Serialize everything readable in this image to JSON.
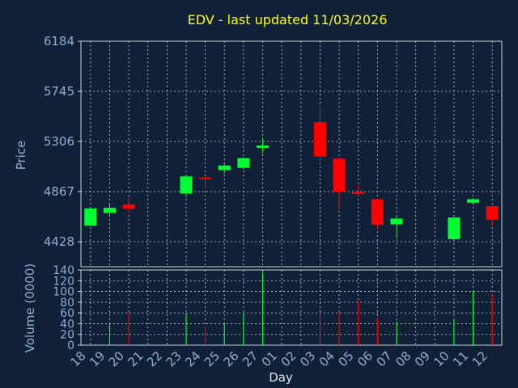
{
  "chart_data": [
    {
      "type": "candlestick",
      "title": "EDV - last updated 11/03/2026",
      "ylabel": "Price",
      "ylim": [
        4208.5,
        6184
      ],
      "y_ticks": [
        4428,
        4867,
        5306,
        5745,
        6184
      ],
      "y_tick_labels": [
        "4428",
        "4867",
        "5306",
        "5745",
        "6184"
      ],
      "grid": true,
      "up_color": "#00ff33",
      "down_color": "#ff0000",
      "candles": [
        {
          "x": 0,
          "open": 4570,
          "close": 4720,
          "high": 4720,
          "low": 4570
        },
        {
          "x": 1,
          "open": 4680,
          "close": 4725,
          "high": 4755,
          "low": 4645
        },
        {
          "x": 2,
          "open": 4755,
          "close": 4715,
          "high": 4820,
          "low": 4680
        },
        {
          "x": 5,
          "open": 4850,
          "close": 5000,
          "high": 5010,
          "low": 4820
        },
        {
          "x": 6,
          "open": 4990,
          "close": 4975,
          "high": 5000,
          "low": 4895
        },
        {
          "x": 7,
          "open": 5055,
          "close": 5095,
          "high": 5110,
          "low": 5025
        },
        {
          "x": 8,
          "open": 5075,
          "close": 5160,
          "high": 5165,
          "low": 5060
        },
        {
          "x": 9,
          "open": 5250,
          "close": 5270,
          "high": 5340,
          "low": 5205
        },
        {
          "x": 12,
          "open": 5475,
          "close": 5175,
          "high": 5625,
          "low": 5100
        },
        {
          "x": 13,
          "open": 5155,
          "close": 4865,
          "high": 5165,
          "low": 4725
        },
        {
          "x": 14,
          "open": 4860,
          "close": 4845,
          "high": 4925,
          "low": 4830
        },
        {
          "x": 15,
          "open": 4800,
          "close": 4575,
          "high": 4800,
          "low": 4545
        },
        {
          "x": 16,
          "open": 4580,
          "close": 4630,
          "high": 4650,
          "low": 4460
        },
        {
          "x": 19,
          "open": 4450,
          "close": 4640,
          "high": 4640,
          "low": 4450
        },
        {
          "x": 20,
          "open": 4770,
          "close": 4800,
          "high": 4810,
          "low": 4760
        },
        {
          "x": 21,
          "open": 4740,
          "close": 4620,
          "high": 4740,
          "low": 4565
        }
      ]
    },
    {
      "type": "bar",
      "ylabel": "Volume (0000)",
      "xlabel": "Day",
      "ylim": [
        0,
        140
      ],
      "y_ticks": [
        0,
        20,
        40,
        60,
        80,
        100,
        120,
        140
      ],
      "y_tick_labels": [
        "0",
        "20",
        "40",
        "60",
        "80",
        "100",
        "120",
        "140"
      ],
      "categories": [
        "18",
        "19",
        "20",
        "21",
        "22",
        "23",
        "24",
        "25",
        "26",
        "27",
        "01",
        "02",
        "03",
        "04",
        "05",
        "06",
        "07",
        "08",
        "09",
        "10",
        "11",
        "12"
      ],
      "bars": [
        {
          "x": 1,
          "value": 40,
          "direction": "up"
        },
        {
          "x": 2,
          "value": 62,
          "direction": "down"
        },
        {
          "x": 5,
          "value": 60,
          "direction": "up"
        },
        {
          "x": 6,
          "value": 36,
          "direction": "down"
        },
        {
          "x": 7,
          "value": 42,
          "direction": "up"
        },
        {
          "x": 8,
          "value": 60,
          "direction": "up"
        },
        {
          "x": 9,
          "value": 136,
          "direction": "up"
        },
        {
          "x": 12,
          "value": 60,
          "direction": "down"
        },
        {
          "x": 13,
          "value": 63,
          "direction": "down"
        },
        {
          "x": 14,
          "value": 82,
          "direction": "down"
        },
        {
          "x": 15,
          "value": 50,
          "direction": "down"
        },
        {
          "x": 16,
          "value": 44,
          "direction": "up"
        },
        {
          "x": 19,
          "value": 48,
          "direction": "up"
        },
        {
          "x": 20,
          "value": 100,
          "direction": "up"
        },
        {
          "x": 21,
          "value": 94,
          "direction": "down"
        }
      ]
    }
  ]
}
